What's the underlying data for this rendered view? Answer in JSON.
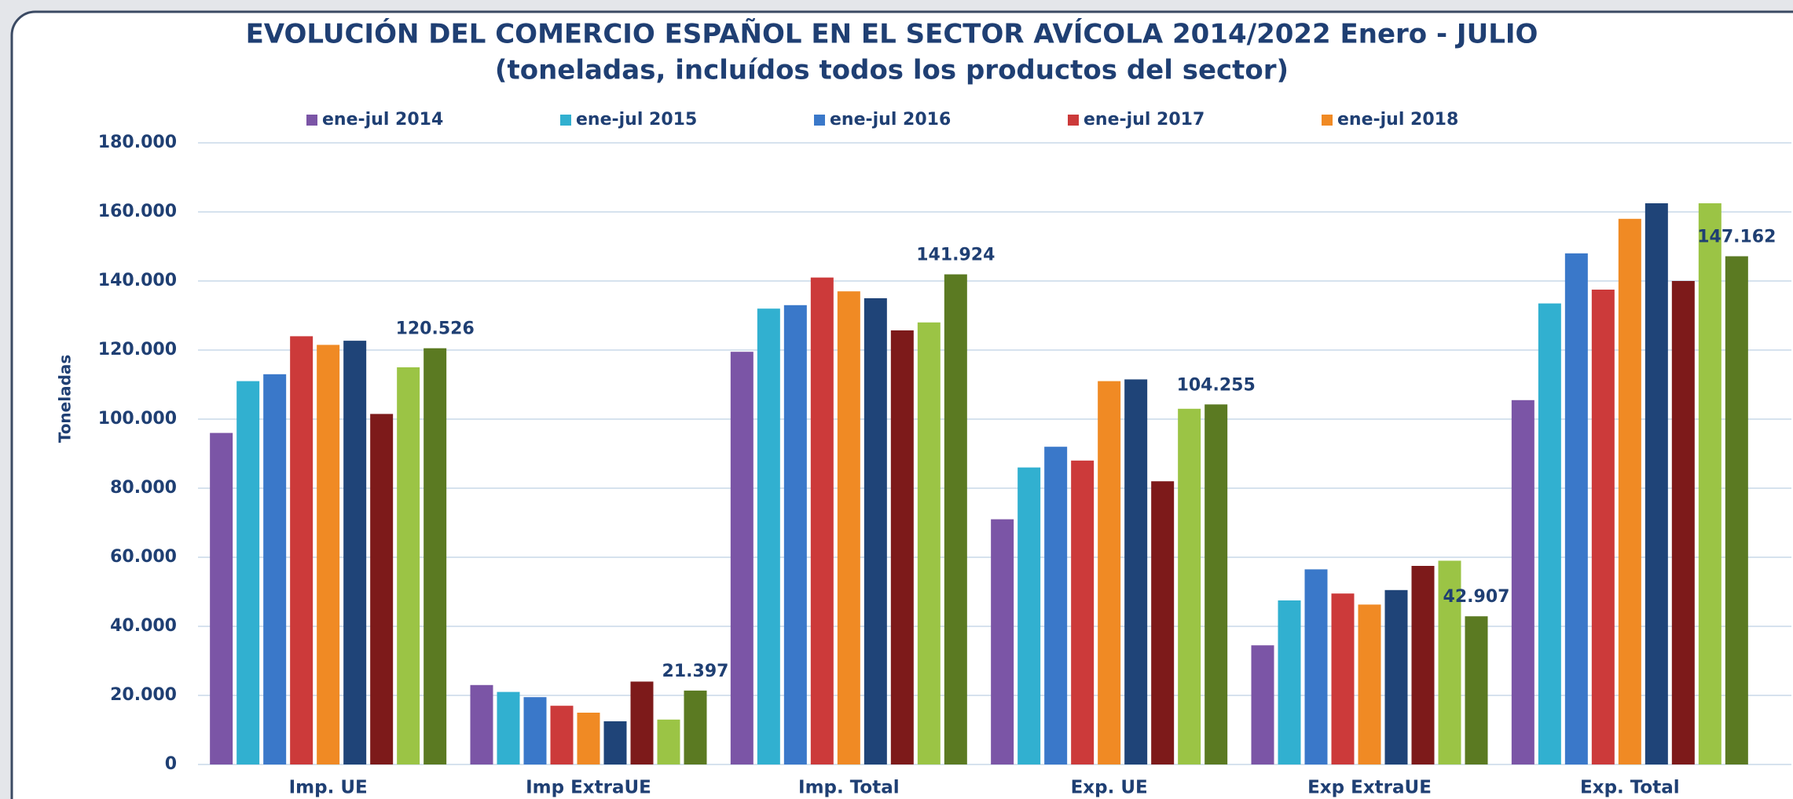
{
  "chart_data": {
    "type": "bar",
    "title": "EVOLUCIÓN DEL COMERCIO ESPAÑOL EN EL SECTOR AVÍCOLA 2014/2022 Enero - JULIO",
    "subtitle": "(toneladas, incluídos todos los productos del sector)",
    "y_label": "Toneladas",
    "categories": [
      "Imp. UE",
      "Imp ExtraUE",
      "Imp. Total",
      "Exp. UE",
      "Exp ExtraUE",
      "Exp. Total"
    ],
    "series": [
      {
        "name": "ene-jul 2014",
        "color": "#7b55a6",
        "values": [
          96000,
          23000,
          119500,
          71000,
          34500,
          105500
        ]
      },
      {
        "name": "ene-jul 2015",
        "color": "#31b0d0",
        "values": [
          111000,
          21000,
          132000,
          86000,
          47500,
          133500
        ]
      },
      {
        "name": "ene-jul 2016",
        "color": "#3a78c9",
        "values": [
          113000,
          19500,
          133000,
          92000,
          56500,
          148000
        ]
      },
      {
        "name": "ene-jul 2017",
        "color": "#cc3a3a",
        "values": [
          124000,
          17000,
          141000,
          88000,
          49500,
          137500
        ]
      },
      {
        "name": "ene-jul 2018",
        "color": "#f08a24",
        "values": [
          121500,
          15000,
          137000,
          111000,
          46300,
          158000
        ]
      },
      {
        "color": "#1f4478",
        "values": [
          122700,
          12500,
          135000,
          111500,
          50500,
          162500
        ]
      },
      {
        "color": "#7d1a1a",
        "values": [
          101500,
          24000,
          125700,
          82000,
          57500,
          140000
        ]
      },
      {
        "color": "#9bc445",
        "values": [
          115000,
          13000,
          128000,
          103000,
          59000,
          162500
        ]
      },
      {
        "color": "#5b7a22",
        "values": [
          120526,
          21397,
          141924,
          104255,
          42907,
          147162
        ],
        "value_labels": [
          "120.526",
          "21.397",
          "141.924",
          "104.255",
          "42.907",
          "147.162"
        ]
      }
    ],
    "ylim": [
      0,
      180000
    ],
    "yticks": [
      0,
      {
        "value": 20000,
        "label": "20.000"
      },
      {
        "value": 40000,
        "label": "40.000"
      },
      {
        "value": 60000,
        "label": "60.000"
      },
      {
        "value": 80000,
        "label": "80.000"
      },
      {
        "value": 100000,
        "label": "100.000"
      },
      {
        "value": 120000,
        "label": "120.000"
      },
      {
        "value": 140000,
        "label": "140.000"
      },
      {
        "value": 160000,
        "label": "160.000"
      },
      {
        "value": 180000,
        "label": "180.000"
      }
    ],
    "grid": true,
    "legend": "top"
  }
}
